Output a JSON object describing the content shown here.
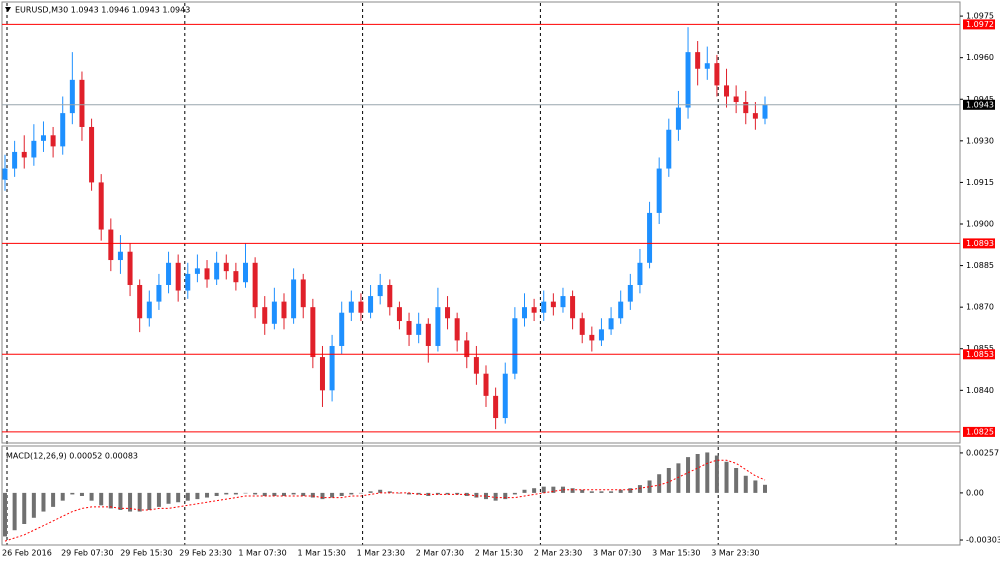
{
  "chart_data": [
    {
      "type": "candlestick",
      "title": "EURUSD,M30 1.0943 1.0946 1.0943 1.0943",
      "x_labels": [
        "26 Feb 2016",
        "29 Feb 07:30",
        "29 Feb 15:30",
        "29 Feb 23:30",
        "1 Mar 07:30",
        "1 Mar 15:30",
        "1 Mar 23:30",
        "2 Mar 07:30",
        "2 Mar 15:30",
        "2 Mar 23:30",
        "3 Mar 07:30",
        "3 Mar 15:30",
        "3 Mar 23:30"
      ],
      "open": [
        1.0916,
        1.092,
        1.0926,
        1.0924,
        1.093,
        1.0932,
        1.0928,
        1.094,
        1.0952,
        1.0935,
        1.0915,
        1.0898,
        1.0887,
        1.089,
        1.0878,
        1.0866,
        1.0872,
        1.0878,
        1.0886,
        1.0876,
        1.0882,
        1.0884,
        1.088,
        1.0886,
        1.0883,
        1.0879,
        1.0886,
        1.087,
        1.0864,
        1.0872,
        1.0866,
        1.088,
        1.087,
        1.0852,
        1.084,
        1.0856,
        1.0868,
        1.0872,
        1.0868,
        1.0874,
        1.0878,
        1.087,
        1.0865,
        1.086,
        1.0864,
        1.0856,
        1.087,
        1.0866,
        1.0858,
        1.0852,
        1.0846,
        1.0838,
        1.083,
        1.0846,
        1.0866,
        1.087,
        1.0868,
        1.0872,
        1.087,
        1.0874,
        1.0866,
        1.086,
        1.0858,
        1.0862,
        1.0866,
        1.0872,
        1.0878,
        1.0886,
        1.0904,
        1.092,
        1.0934,
        1.0942,
        1.0962,
        1.0956,
        1.0958,
        1.095,
        1.0946,
        1.0944,
        1.094,
        1.0938
      ],
      "high": [
        1.0925,
        1.093,
        1.0932,
        1.0936,
        1.0937,
        1.0935,
        1.0946,
        1.0962,
        1.0955,
        1.0938,
        1.0918,
        1.0902,
        1.0896,
        1.0893,
        1.088,
        1.0876,
        1.0882,
        1.089,
        1.0889,
        1.0886,
        1.0889,
        1.0887,
        1.089,
        1.0889,
        1.0886,
        1.0893,
        1.0888,
        1.0874,
        1.0877,
        1.0875,
        1.0884,
        1.0882,
        1.0873,
        1.0856,
        1.086,
        1.0872,
        1.0876,
        1.0875,
        1.0878,
        1.0882,
        1.088,
        1.0872,
        1.0868,
        1.0868,
        1.0866,
        1.0877,
        1.0874,
        1.0868,
        1.0861,
        1.0856,
        1.0849,
        1.0841,
        1.085,
        1.087,
        1.0875,
        1.0873,
        1.0876,
        1.0875,
        1.0877,
        1.0876,
        1.0868,
        1.0863,
        1.0866,
        1.087,
        1.0876,
        1.0882,
        1.0891,
        1.0908,
        1.0924,
        1.0938,
        1.0948,
        1.0971,
        1.0966,
        1.0964,
        1.0961,
        1.0956,
        1.095,
        1.0948,
        1.0944,
        1.0946
      ],
      "low": [
        1.0912,
        1.0917,
        1.092,
        1.0921,
        1.0926,
        1.0924,
        1.0925,
        1.0936,
        1.093,
        1.0912,
        1.0894,
        1.0883,
        1.0882,
        1.0874,
        1.0861,
        1.0863,
        1.0869,
        1.0875,
        1.0872,
        1.0873,
        1.0879,
        1.0877,
        1.0878,
        1.088,
        1.0876,
        1.0877,
        1.0866,
        1.086,
        1.0862,
        1.0862,
        1.0864,
        1.0866,
        1.0848,
        1.0834,
        1.0836,
        1.0853,
        1.0865,
        1.0865,
        1.0866,
        1.0871,
        1.0867,
        1.0862,
        1.0856,
        1.0857,
        1.085,
        1.0854,
        1.0862,
        1.0854,
        1.0848,
        1.0842,
        1.0834,
        1.0826,
        1.0828,
        1.0844,
        1.0863,
        1.0865,
        1.0865,
        1.0867,
        1.0868,
        1.0862,
        1.0857,
        1.0854,
        1.0856,
        1.086,
        1.0864,
        1.0869,
        1.0875,
        1.0884,
        1.09,
        1.0917,
        1.093,
        1.0938,
        1.095,
        1.0952,
        1.0946,
        1.0942,
        1.094,
        1.0936,
        1.0934,
        1.0936
      ],
      "close": [
        1.092,
        1.0926,
        1.0924,
        1.093,
        1.0932,
        1.0928,
        1.094,
        1.0952,
        1.0935,
        1.0915,
        1.0898,
        1.0887,
        1.089,
        1.0878,
        1.0866,
        1.0872,
        1.0878,
        1.0886,
        1.0876,
        1.0882,
        1.0884,
        1.088,
        1.0886,
        1.0883,
        1.0879,
        1.0886,
        1.087,
        1.0864,
        1.0872,
        1.0866,
        1.088,
        1.087,
        1.0852,
        1.084,
        1.0856,
        1.0868,
        1.0872,
        1.0868,
        1.0874,
        1.0878,
        1.087,
        1.0865,
        1.086,
        1.0864,
        1.0856,
        1.087,
        1.0866,
        1.0858,
        1.0852,
        1.0846,
        1.0838,
        1.083,
        1.0846,
        1.0866,
        1.087,
        1.0868,
        1.0872,
        1.087,
        1.0874,
        1.0866,
        1.086,
        1.0858,
        1.0862,
        1.0866,
        1.0872,
        1.0878,
        1.0886,
        1.0904,
        1.092,
        1.0934,
        1.0942,
        1.0962,
        1.0956,
        1.0958,
        1.095,
        1.0946,
        1.0944,
        1.094,
        1.0938,
        1.0943
      ],
      "up_color": "#1e90ff",
      "down_color": "#e0202a",
      "ylim": [
        1.0821,
        1.0979
      ],
      "yticks": [
        1.0975,
        {
          "value": 1.096,
          "label": "1.0960"
        },
        1.0945,
        {
          "value": 1.093,
          "label": "1.0930"
        },
        1.0915,
        {
          "value": 1.09,
          "label": "1.0900"
        },
        1.0885,
        {
          "value": 1.087,
          "label": "1.0870"
        },
        1.0855,
        {
          "value": 1.084,
          "label": "1.0840"
        }
      ],
      "levels": [
        1.0972,
        1.0893,
        1.0853,
        1.0825
      ],
      "level_color": "#ff0000",
      "last_price": 1.0943,
      "last_price_color": "#99a6ad"
    },
    {
      "type": "macd",
      "title": "MACD(12,26,9) 0.00052 0.00083",
      "series": [
        {
          "name": "Main",
          "color": "#707070",
          "values": [
            -0.0028,
            -0.0024,
            -0.002,
            -0.0016,
            -0.0012,
            -0.0009,
            -0.0005,
            -0.0001,
            -0.0002,
            -0.0005,
            -0.0008,
            -0.001,
            -0.0011,
            -0.0012,
            -0.0012,
            -0.0011,
            -0.0009,
            -0.0007,
            -0.0006,
            -0.0005,
            -0.0004,
            -0.0003,
            -0.0002,
            -0.0001,
            -0.0001,
            0.0,
            -0.0001,
            -0.0002,
            -0.0002,
            -0.0002,
            -0.0001,
            -0.0002,
            -0.0003,
            -0.0004,
            -0.0003,
            -0.0002,
            -0.0001,
            0.0,
            0.0001,
            0.0002,
            0.0001,
            0.0,
            -0.0001,
            -0.0001,
            -0.0002,
            -0.0001,
            -0.0001,
            -0.0001,
            -0.0002,
            -0.0003,
            -0.0004,
            -0.0005,
            -0.0004,
            -0.0001,
            0.0002,
            0.0003,
            0.0004,
            0.0004,
            0.0004,
            0.0003,
            0.0002,
            0.0001,
            0.0001,
            0.0001,
            0.0002,
            0.0003,
            0.0005,
            0.0008,
            0.0012,
            0.0016,
            0.0019,
            0.0023,
            0.0025,
            0.0026,
            0.0024,
            0.002,
            0.0016,
            0.0011,
            0.0008,
            0.00052
          ]
        },
        {
          "name": "Signal",
          "color": "#ff0000",
          "values": [
            -0.0031,
            -0.0029,
            -0.0027,
            -0.0024,
            -0.0021,
            -0.0018,
            -0.0015,
            -0.0012,
            -0.001,
            -0.0009,
            -0.0009,
            -0.0009,
            -0.001,
            -0.001,
            -0.0011,
            -0.0011,
            -0.001,
            -0.001,
            -0.0009,
            -0.0008,
            -0.0007,
            -0.0006,
            -0.0005,
            -0.0004,
            -0.0003,
            -0.0002,
            -0.0002,
            -0.0002,
            -0.0002,
            -0.0002,
            -0.0002,
            -0.0002,
            -0.0002,
            -0.0003,
            -0.0003,
            -0.0003,
            -0.0002,
            -0.0002,
            -0.0001,
            0.0,
            0.0,
            0.0,
            0.0,
            -0.0001,
            -0.0001,
            -0.0001,
            -0.0001,
            -0.0001,
            -0.0001,
            -0.0002,
            -0.0002,
            -0.0003,
            -0.0003,
            -0.0003,
            -0.0002,
            -0.0001,
            0.0,
            0.0001,
            0.0002,
            0.0002,
            0.0002,
            0.0002,
            0.0002,
            0.0002,
            0.0002,
            0.0002,
            0.0003,
            0.0004,
            0.0005,
            0.0007,
            0.001,
            0.0013,
            0.0016,
            0.0019,
            0.0021,
            0.0021,
            0.0019,
            0.0015,
            0.0011,
            0.00083
          ]
        }
      ],
      "ylim": [
        -0.00335,
        0.00295
      ],
      "yticks": [
        0.00257,
        {
          "value": 0,
          "label": "0.00"
        },
        -0.00303
      ]
    }
  ]
}
